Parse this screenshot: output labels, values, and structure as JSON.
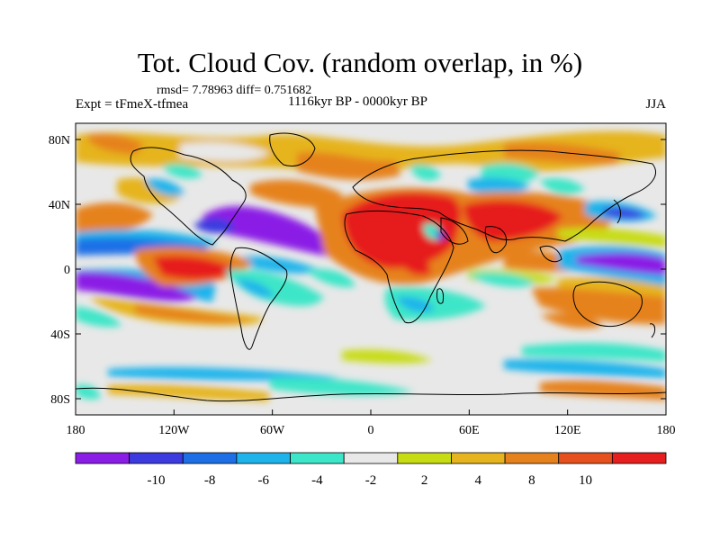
{
  "title": "Tot. Cloud Cov. (random overlap, in %)",
  "stats": {
    "rmsd": "7.78963",
    "diff": "0.751682"
  },
  "stat_line": "rmsd= 7.78963 diff= 0.751682",
  "experiment": "Expt = tFmeX-tfmea",
  "period": "1116kyr BP - 0000kyr BP",
  "season": "JJA",
  "map": {
    "projection": "cylindrical-equidistant",
    "lon_ticks": [
      "180",
      "120W",
      "60W",
      "0",
      "60E",
      "120E",
      "180"
    ],
    "lat_ticks": [
      "80N",
      "40N",
      "0",
      "40S",
      "80S"
    ],
    "lon_values": [
      -180,
      -120,
      -60,
      0,
      60,
      120,
      180
    ],
    "lat_values": [
      80,
      40,
      0,
      -40,
      -80
    ],
    "lon_range": [
      -180,
      180
    ],
    "lat_range": [
      -90,
      90
    ]
  },
  "colorbar": {
    "colors": [
      "#8b1ee6",
      "#3b3be0",
      "#1e6fe6",
      "#1eb4eb",
      "#3ce6c8",
      "#e8e8e8",
      "#c8dc14",
      "#e6b41e",
      "#e6821e",
      "#e6501e",
      "#e61e1e"
    ],
    "labels": [
      "-10",
      "-8",
      "-6",
      "-4",
      "-2",
      "2",
      "4",
      "8",
      "10"
    ]
  },
  "field_colors": {
    "red": "#e61e1e",
    "orange": "#e6821e",
    "gold": "#e6b41e",
    "yellow": "#c8dc14",
    "neutral": "#e8e8e8",
    "cyan": "#3ce6c8",
    "sky": "#1eb4eb",
    "blue": "#1e6fe6",
    "dblue": "#3b3be0",
    "purple": "#8b1ee6"
  }
}
